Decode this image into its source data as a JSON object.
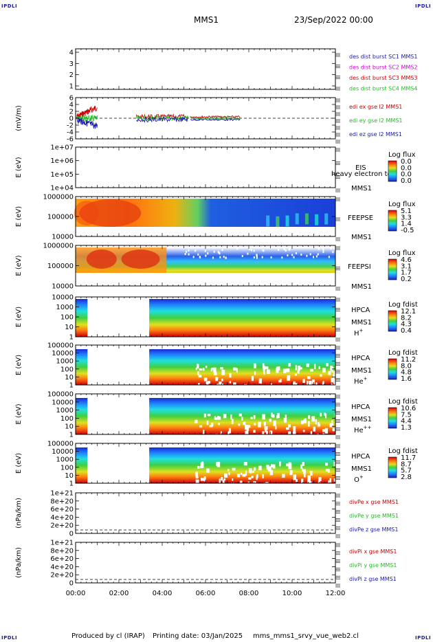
{
  "header": {
    "corner_label": "IPDLI",
    "spacecraft": "MMS1",
    "datetime": "23/Sep/2022 00:00"
  },
  "footer": {
    "produced": "Produced by cl (IRAP)",
    "printing": "Printing date: 03/Jan/2025",
    "file": "mms_mms1_srvy_vue_web2.cl"
  },
  "chart_data": [
    {
      "type": "line",
      "name": "des dist burst",
      "ylabel": "",
      "yticks": [
        "4",
        "3",
        "2",
        "1"
      ],
      "legend": [
        {
          "text": "des dist burst SC1 MMS1",
          "color": "#1a1aa6"
        },
        {
          "text": "des dist burst SC2 MMS2",
          "color": "#cc00cc"
        },
        {
          "text": "des dist burst SC3 MMS3",
          "color": "#cc0000"
        },
        {
          "text": "des dist burst SC4 MMS4",
          "color": "#22bb22"
        }
      ]
    },
    {
      "type": "line",
      "name": "edi efield",
      "ylabel": "(mV/m)",
      "yticks": [
        "6",
        "4",
        "2",
        "0",
        "-2",
        "-4",
        "-6"
      ],
      "legend": [
        {
          "text": "edi ex gse l2 MMS1",
          "color": "#cc0000"
        },
        {
          "text": "edi ey gse l2 MMS1",
          "color": "#22bb22"
        },
        {
          "text": "edi ez gse l2 MMS1",
          "color": "#1a1aa6"
        }
      ]
    },
    {
      "type": "heatmap",
      "name": "EIS",
      "ylabel": "E (eV)",
      "yticks": [
        "1e+07",
        "1e+06",
        "1e+05",
        "1e+04"
      ],
      "labels": [
        "EIS",
        "MMS1"
      ],
      "overlay_text": "heavy electron to",
      "cbar_title": "Log flux",
      "cbar_ticks": [
        "0.0",
        "0.0",
        "0.0",
        "0.0"
      ]
    },
    {
      "type": "heatmap",
      "name": "FEEPSE",
      "ylabel": "E (eV)",
      "yticks": [
        "1000000",
        "100000",
        "10000"
      ],
      "labels": [
        "FEEPSE",
        "MMS1"
      ],
      "cbar_title": "Log flux",
      "cbar_ticks": [
        "5.1",
        "3.3",
        "1.4",
        "-0.5"
      ]
    },
    {
      "type": "heatmap",
      "name": "FEEPSI",
      "ylabel": "E (eV)",
      "yticks": [
        "1000000",
        "100000",
        "10000"
      ],
      "labels": [
        "FEEPSI",
        "MMS1"
      ],
      "cbar_title": "Log flux",
      "cbar_ticks": [
        "4.6",
        "3.1",
        "1.7",
        "0.2"
      ]
    },
    {
      "type": "heatmap",
      "name": "HPCA H+",
      "ylabel": "E (eV)",
      "yticks": [
        "10000",
        "1000",
        "100",
        "10",
        "1"
      ],
      "labels": [
        "HPCA",
        "MMS1"
      ],
      "species": "H",
      "species_sup": "+",
      "cbar_title": "Log fdist",
      "cbar_ticks": [
        "12.1",
        "8.2",
        "4.3",
        "0.4"
      ]
    },
    {
      "type": "heatmap",
      "name": "HPCA He+",
      "ylabel": "E (eV)",
      "yticks": [
        "100000",
        "10000",
        "1000",
        "100",
        "10",
        "1"
      ],
      "labels": [
        "HPCA",
        "MMS1"
      ],
      "species": "He",
      "species_sup": "+",
      "cbar_title": "Log fdist",
      "cbar_ticks": [
        "11.2",
        "8.0",
        "4.8",
        "1.6"
      ]
    },
    {
      "type": "heatmap",
      "name": "HPCA He++",
      "ylabel": "E (eV)",
      "yticks": [
        "100000",
        "10000",
        "1000",
        "100",
        "10",
        "1"
      ],
      "labels": [
        "HPCA",
        "MMS1"
      ],
      "species": "He",
      "species_sup": "++",
      "cbar_title": "Log fdist",
      "cbar_ticks": [
        "10.6",
        "7.5",
        "4.4",
        "1.3"
      ]
    },
    {
      "type": "heatmap",
      "name": "HPCA O+",
      "ylabel": "E (eV)",
      "yticks": [
        "100000",
        "10000",
        "1000",
        "100",
        "10",
        "1"
      ],
      "labels": [
        "HPCA",
        "MMS1"
      ],
      "species": "O",
      "species_sup": "+",
      "cbar_title": "Log fdist",
      "cbar_ticks": [
        "11.7",
        "8.7",
        "5.7",
        "2.8"
      ]
    },
    {
      "type": "line",
      "name": "divPe",
      "ylabel": "(nPa/km)",
      "yticks": [
        "1e+21",
        "8e+20",
        "6e+20",
        "4e+20",
        "2e+20",
        "0"
      ],
      "legend": [
        {
          "text": "divPe x gse MMS1",
          "color": "#cc0000"
        },
        {
          "text": "divPe y gse MMS1",
          "color": "#22bb22"
        },
        {
          "text": "divPe z gse MMS1",
          "color": "#1a1aa6"
        }
      ]
    },
    {
      "type": "line",
      "name": "divPi",
      "ylabel": "(nPa/km)",
      "yticks": [
        "1e+21",
        "8e+20",
        "6e+20",
        "4e+20",
        "2e+20",
        "0"
      ],
      "legend": [
        {
          "text": "divPi x gse MMS1",
          "color": "#cc0000"
        },
        {
          "text": "divPi y gse MMS1",
          "color": "#22bb22"
        },
        {
          "text": "divPi z gse MMS1",
          "color": "#1a1aa6"
        }
      ]
    }
  ],
  "xaxis": {
    "ticks": [
      "00:00",
      "02:00",
      "04:00",
      "06:00",
      "08:00",
      "10:00",
      "12:00"
    ],
    "range_hours": [
      0,
      12
    ]
  }
}
